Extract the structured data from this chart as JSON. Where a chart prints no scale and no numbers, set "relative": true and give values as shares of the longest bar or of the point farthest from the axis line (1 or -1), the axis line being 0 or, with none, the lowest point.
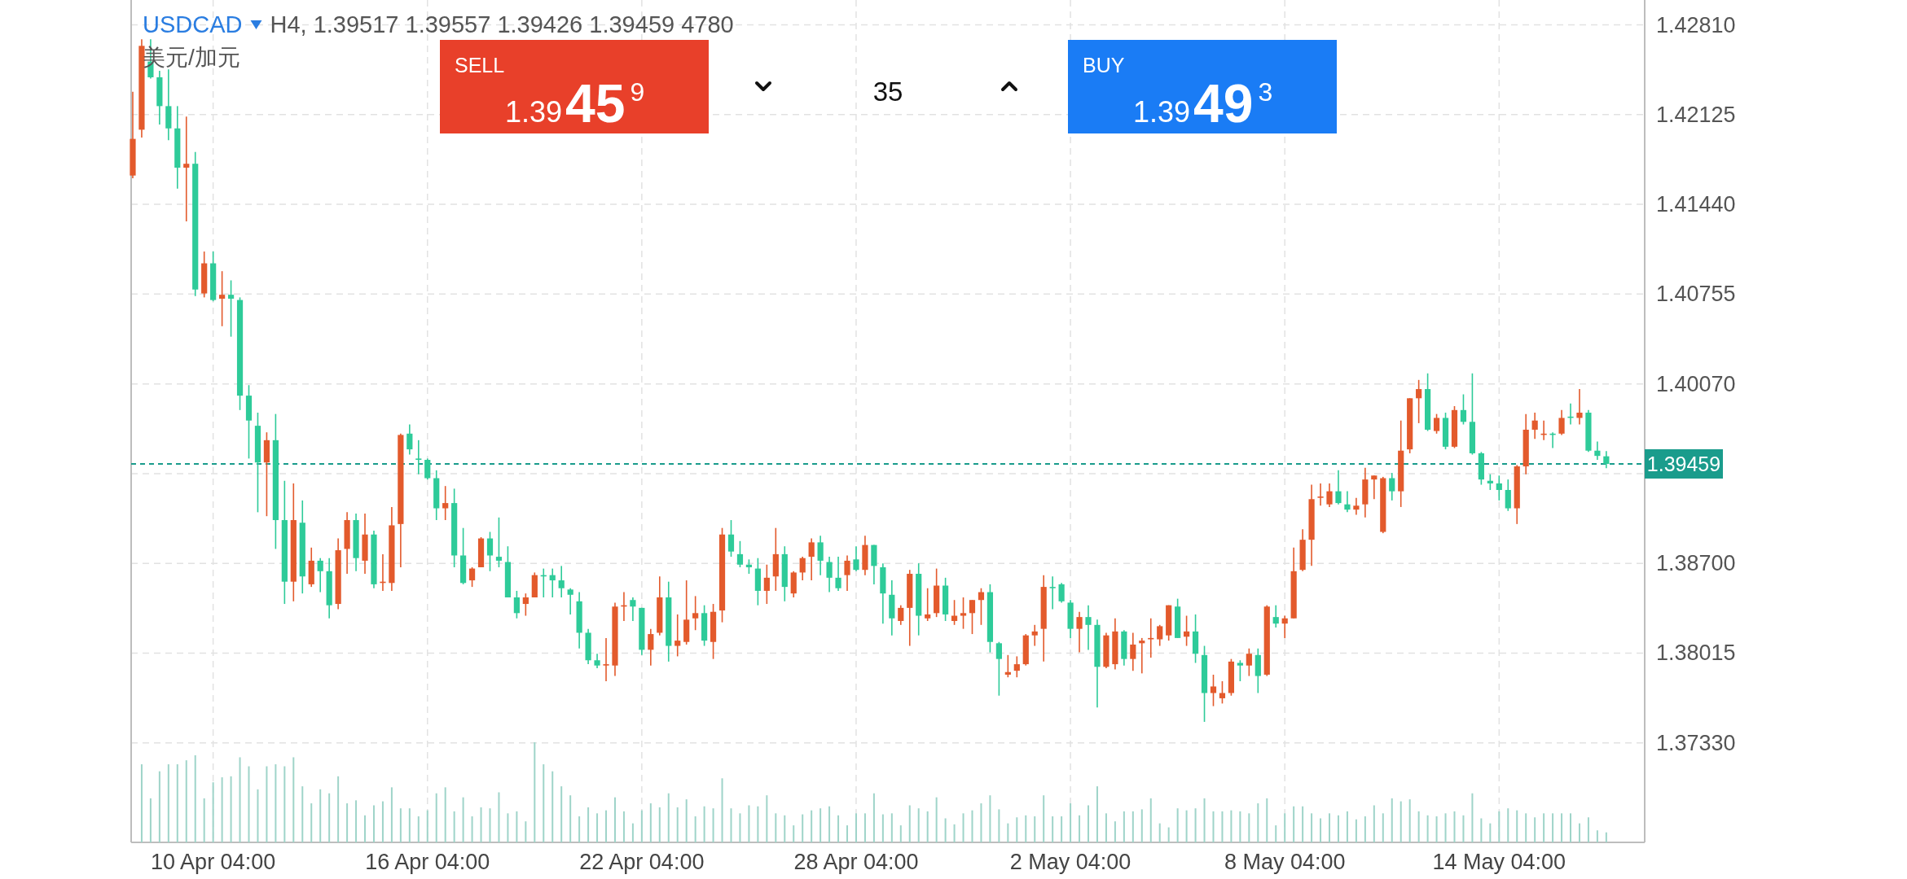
{
  "chart_data": [
    {
      "type": "candlestick",
      "title": "USDCAD",
      "subtitle": "H4, 1.39517 1.39557 1.39426 1.39459 4780",
      "annotations": [
        "美元/加元",
        "SELL",
        "1.39459",
        "35",
        "BUY",
        "1.39493"
      ],
      "categories": [
        null,
        null,
        null,
        null,
        null,
        null,
        null,
        null,
        null,
        "10 Apr 04:00",
        null,
        null,
        null,
        null,
        null,
        null,
        null,
        null,
        null,
        null,
        null,
        null,
        null,
        null,
        null,
        null,
        null,
        null,
        null,
        null,
        null,
        null,
        null,
        "16 Apr 04:00",
        null,
        null,
        null,
        null,
        null,
        null,
        null,
        null,
        null,
        null,
        null,
        null,
        null,
        null,
        null,
        null,
        null,
        null,
        null,
        null,
        null,
        null,
        null,
        "22 Apr 04:00",
        null,
        null,
        null,
        null,
        null,
        null,
        null,
        null,
        null,
        null,
        null,
        null,
        null,
        null,
        null,
        null,
        null,
        null,
        null,
        null,
        null,
        null,
        null,
        "28 Apr 04:00",
        null,
        null,
        null,
        null,
        null,
        null,
        null,
        null,
        null,
        null,
        null,
        null,
        null,
        null,
        null,
        null,
        null,
        null,
        null,
        null,
        null,
        null,
        null,
        "2 May 04:00",
        null,
        null,
        null,
        null,
        null,
        null,
        null,
        null,
        null,
        null,
        null,
        null,
        null,
        null,
        null,
        null,
        null,
        null,
        null,
        null,
        null,
        null,
        null,
        "8 May 04:00",
        null,
        null,
        null,
        null,
        null,
        null,
        null,
        null,
        null,
        null,
        null,
        null,
        null,
        null,
        null,
        null,
        null,
        null,
        null,
        null,
        null,
        null,
        null,
        "14 May 04:00",
        null,
        null,
        null,
        null,
        null,
        null,
        null,
        null,
        null,
        null,
        null,
        null
      ],
      "ohlc": [
        [
          1.4166,
          1.423,
          1.4164,
          1.4194
        ],
        [
          1.4201,
          1.427,
          1.4195,
          1.4265
        ],
        [
          1.4253,
          1.427,
          1.424,
          1.4241
        ],
        [
          1.4241,
          1.4246,
          1.4205,
          1.4219
        ],
        [
          1.4219,
          1.4247,
          1.4193,
          1.4202
        ],
        [
          1.4202,
          1.4219,
          1.4156,
          1.4172
        ],
        [
          1.4172,
          1.4211,
          1.4131,
          1.4175
        ],
        [
          1.4175,
          1.4184,
          1.4074,
          1.4079
        ],
        [
          1.4076,
          1.4108,
          1.4073,
          1.4099
        ],
        [
          1.4099,
          1.4108,
          1.407,
          1.4071
        ],
        [
          1.4072,
          1.4093,
          1.4051,
          1.4075
        ],
        [
          1.4075,
          1.4086,
          1.4043,
          1.4072
        ],
        [
          1.4071,
          1.4073,
          1.3987,
          1.3998
        ],
        [
          1.3998,
          1.4006,
          1.395,
          1.3979
        ],
        [
          1.3975,
          1.3985,
          1.3909,
          1.3947
        ],
        [
          1.3947,
          1.397,
          1.3906,
          1.3964
        ],
        [
          1.3964,
          1.3984,
          1.3881,
          1.3903
        ],
        [
          1.3903,
          1.3933,
          1.3839,
          1.3856
        ],
        [
          1.3856,
          1.3931,
          1.3841,
          1.3903
        ],
        [
          1.3901,
          1.3918,
          1.3847,
          1.386
        ],
        [
          1.3854,
          1.3882,
          1.3852,
          1.3872
        ],
        [
          1.3872,
          1.3874,
          1.3848,
          1.3864
        ],
        [
          1.3864,
          1.3874,
          1.3828,
          1.3838
        ],
        [
          1.3839,
          1.3889,
          1.3835,
          1.388
        ],
        [
          1.3881,
          1.3909,
          1.3862,
          1.3903
        ],
        [
          1.3903,
          1.3908,
          1.3864,
          1.3874
        ],
        [
          1.3872,
          1.3908,
          1.3862,
          1.3892
        ],
        [
          1.3892,
          1.3895,
          1.3851,
          1.3854
        ],
        [
          1.3855,
          1.3877,
          1.3849,
          1.3856
        ],
        [
          1.3855,
          1.3913,
          1.3849,
          1.3899
        ],
        [
          1.39,
          1.3969,
          1.3867,
          1.3968
        ],
        [
          1.3969,
          1.3976,
          1.3953,
          1.3957
        ],
        [
          1.395,
          1.3964,
          1.3938,
          1.3949
        ],
        [
          1.3949,
          1.395,
          1.3934,
          1.3935
        ],
        [
          1.3935,
          1.3941,
          1.3903,
          1.3912
        ],
        [
          1.3912,
          1.3929,
          1.3903,
          1.3916
        ],
        [
          1.3916,
          1.3927,
          1.3867,
          1.3876
        ],
        [
          1.3876,
          1.3897,
          1.3854,
          1.3855
        ],
        [
          1.3857,
          1.3867,
          1.3852,
          1.3866
        ],
        [
          1.3867,
          1.389,
          1.3867,
          1.3889
        ],
        [
          1.3889,
          1.3894,
          1.3864,
          1.3876
        ],
        [
          1.3875,
          1.3905,
          1.3867,
          1.3872
        ],
        [
          1.3871,
          1.3883,
          1.3844,
          1.3844
        ],
        [
          1.3844,
          1.3849,
          1.3828,
          1.3832
        ],
        [
          1.3839,
          1.3847,
          1.383,
          1.3844
        ],
        [
          1.3844,
          1.3863,
          1.3844,
          1.3861
        ],
        [
          1.3861,
          1.3866,
          1.3844,
          1.386
        ],
        [
          1.3861,
          1.3866,
          1.3844,
          1.3857
        ],
        [
          1.3857,
          1.3868,
          1.3844,
          1.3851
        ],
        [
          1.385,
          1.3851,
          1.3831,
          1.3846
        ],
        [
          1.3841,
          1.3848,
          1.3805,
          1.3817
        ],
        [
          1.3817,
          1.382,
          1.3793,
          1.3796
        ],
        [
          1.3796,
          1.3801,
          1.379,
          1.3792
        ],
        [
          1.3792,
          1.3813,
          1.378,
          1.3793
        ],
        [
          1.3792,
          1.384,
          1.3784,
          1.3837
        ],
        [
          1.3837,
          1.3848,
          1.3826,
          1.3838
        ],
        [
          1.3842,
          1.3844,
          1.3826,
          1.3837
        ],
        [
          1.3836,
          1.3836,
          1.38,
          1.3804
        ],
        [
          1.3804,
          1.382,
          1.3792,
          1.3816
        ],
        [
          1.3817,
          1.386,
          1.3815,
          1.3844
        ],
        [
          1.3844,
          1.3856,
          1.3795,
          1.3807
        ],
        [
          1.3807,
          1.3831,
          1.3799,
          1.3811
        ],
        [
          1.381,
          1.3857,
          1.3808,
          1.3827
        ],
        [
          1.3828,
          1.3845,
          1.3819,
          1.3832
        ],
        [
          1.3832,
          1.3838,
          1.3807,
          1.3811
        ],
        [
          1.381,
          1.3839,
          1.3797,
          1.3833
        ],
        [
          1.3834,
          1.3897,
          1.3825,
          1.3892
        ],
        [
          1.3892,
          1.3903,
          1.3875,
          1.3879
        ],
        [
          1.3877,
          1.3887,
          1.3867,
          1.3869
        ],
        [
          1.3869,
          1.3873,
          1.3862,
          1.3867
        ],
        [
          1.3866,
          1.3874,
          1.3838,
          1.3849
        ],
        [
          1.3849,
          1.3869,
          1.3839,
          1.3859
        ],
        [
          1.386,
          1.3897,
          1.3849,
          1.3877
        ],
        [
          1.3877,
          1.3883,
          1.3841,
          1.3852
        ],
        [
          1.3847,
          1.3864,
          1.3844,
          1.3863
        ],
        [
          1.3863,
          1.3875,
          1.3857,
          1.3874
        ],
        [
          1.3875,
          1.3889,
          1.3857,
          1.3886
        ],
        [
          1.3886,
          1.3891,
          1.3861,
          1.3872
        ],
        [
          1.3871,
          1.3875,
          1.3848,
          1.3859
        ],
        [
          1.3859,
          1.3875,
          1.3849,
          1.3851
        ],
        [
          1.3861,
          1.3876,
          1.3849,
          1.3872
        ],
        [
          1.3873,
          1.3883,
          1.3864,
          1.3865
        ],
        [
          1.3865,
          1.3891,
          1.3861,
          1.3884
        ],
        [
          1.3884,
          1.3884,
          1.3854,
          1.3868
        ],
        [
          1.3867,
          1.387,
          1.3824,
          1.3847
        ],
        [
          1.3846,
          1.3857,
          1.3815,
          1.3828
        ],
        [
          1.3826,
          1.3838,
          1.3823,
          1.3836
        ],
        [
          1.3836,
          1.3865,
          1.3807,
          1.3862
        ],
        [
          1.3862,
          1.387,
          1.3815,
          1.383
        ],
        [
          1.3828,
          1.3851,
          1.3826,
          1.3831
        ],
        [
          1.3832,
          1.3866,
          1.3829,
          1.3853
        ],
        [
          1.3853,
          1.3859,
          1.3826,
          1.3831
        ],
        [
          1.3826,
          1.3842,
          1.3823,
          1.383
        ],
        [
          1.383,
          1.3844,
          1.382,
          1.3832
        ],
        [
          1.3832,
          1.3842,
          1.3816,
          1.3842
        ],
        [
          1.3842,
          1.3851,
          1.3823,
          1.3848
        ],
        [
          1.3848,
          1.3854,
          1.3802,
          1.381
        ],
        [
          1.3809,
          1.381,
          1.3769,
          1.3797
        ],
        [
          1.3785,
          1.38,
          1.3783,
          1.3787
        ],
        [
          1.3788,
          1.3799,
          1.3783,
          1.3793
        ],
        [
          1.3793,
          1.3816,
          1.3792,
          1.3815
        ],
        [
          1.3815,
          1.3823,
          1.3807,
          1.3818
        ],
        [
          1.382,
          1.3861,
          1.3795,
          1.3852
        ],
        [
          1.3852,
          1.386,
          1.3835,
          1.3852
        ],
        [
          1.3854,
          1.3855,
          1.384,
          1.3841
        ],
        [
          1.384,
          1.3842,
          1.3813,
          1.382
        ],
        [
          1.382,
          1.3833,
          1.3802,
          1.3829
        ],
        [
          1.3829,
          1.3838,
          1.3804,
          1.3823
        ],
        [
          1.3823,
          1.3827,
          1.376,
          1.3791
        ],
        [
          1.3791,
          1.3817,
          1.379,
          1.3815
        ],
        [
          1.3793,
          1.3828,
          1.3789,
          1.3818
        ],
        [
          1.3818,
          1.3819,
          1.3792,
          1.3797
        ],
        [
          1.3797,
          1.3817,
          1.3788,
          1.3808
        ],
        [
          1.3809,
          1.3813,
          1.3786,
          1.3811
        ],
        [
          1.3812,
          1.3828,
          1.3798,
          1.3813
        ],
        [
          1.3812,
          1.3823,
          1.3807,
          1.3822
        ],
        [
          1.3815,
          1.3838,
          1.3811,
          1.3838
        ],
        [
          1.3837,
          1.3843,
          1.3813,
          1.3813
        ],
        [
          1.3814,
          1.383,
          1.3807,
          1.3818
        ],
        [
          1.3818,
          1.3831,
          1.3794,
          1.3801
        ],
        [
          1.38,
          1.3807,
          1.3749,
          1.3771
        ],
        [
          1.3771,
          1.3785,
          1.3761,
          1.3776
        ],
        [
          1.3767,
          1.378,
          1.3763,
          1.3771
        ],
        [
          1.3771,
          1.3797,
          1.3769,
          1.3795
        ],
        [
          1.3794,
          1.3796,
          1.378,
          1.3792
        ],
        [
          1.3792,
          1.3805,
          1.3784,
          1.3801
        ],
        [
          1.38,
          1.3805,
          1.3771,
          1.3784
        ],
        [
          1.3785,
          1.3838,
          1.3784,
          1.3837
        ],
        [
          1.3829,
          1.3838,
          1.3821,
          1.3824
        ],
        [
          1.3824,
          1.383,
          1.3813,
          1.3828
        ],
        [
          1.3828,
          1.3882,
          1.3828,
          1.3864
        ],
        [
          1.3865,
          1.3896,
          1.3864,
          1.3888
        ],
        [
          1.3888,
          1.393,
          1.3868,
          1.3919
        ],
        [
          1.392,
          1.3931,
          1.3914,
          1.3921
        ],
        [
          1.3915,
          1.3931,
          1.3913,
          1.3925
        ],
        [
          1.3925,
          1.3941,
          1.3915,
          1.3916
        ],
        [
          1.3915,
          1.3925,
          1.3909,
          1.3911
        ],
        [
          1.3911,
          1.392,
          1.3907,
          1.3914
        ],
        [
          1.3915,
          1.3943,
          1.3905,
          1.3934
        ],
        [
          1.3934,
          1.3937,
          1.3919,
          1.3937
        ],
        [
          1.3894,
          1.3936,
          1.3893,
          1.3935
        ],
        [
          1.3935,
          1.3939,
          1.3918,
          1.3925
        ],
        [
          1.3925,
          1.3979,
          1.3913,
          1.3956
        ],
        [
          1.3957,
          1.3996,
          1.3954,
          1.3996
        ],
        [
          1.3996,
          1.401,
          1.3977,
          1.4003
        ],
        [
          1.4003,
          1.4015,
          1.3971,
          1.3972
        ],
        [
          1.3971,
          1.3984,
          1.3969,
          1.3981
        ],
        [
          1.3981,
          1.3985,
          1.3957,
          1.3959
        ],
        [
          1.3959,
          1.399,
          1.3958,
          1.3987
        ],
        [
          1.3987,
          1.3999,
          1.3976,
          1.3978
        ],
        [
          1.3978,
          1.4015,
          1.3953,
          1.3954
        ],
        [
          1.3954,
          1.3955,
          1.393,
          1.3934
        ],
        [
          1.3933,
          1.3938,
          1.3926,
          1.3931
        ],
        [
          1.3931,
          1.3937,
          1.3918,
          1.3926
        ],
        [
          1.3926,
          1.3934,
          1.391,
          1.3912
        ],
        [
          1.3912,
          1.3945,
          1.39,
          1.3944
        ],
        [
          1.3944,
          1.3984,
          1.3938,
          1.3972
        ],
        [
          1.3972,
          1.3985,
          1.3965,
          1.3979
        ],
        [
          1.3968,
          1.3979,
          1.3964,
          1.3969
        ],
        [
          1.3969,
          1.397,
          1.3958,
          1.3968
        ],
        [
          1.3969,
          1.3987,
          1.3968,
          1.3981
        ],
        [
          1.3982,
          1.3992,
          1.3976,
          1.3982
        ],
        [
          1.3981,
          1.4003,
          1.3976,
          1.3985
        ],
        [
          1.3985,
          1.3987,
          1.3955,
          1.3956
        ],
        [
          1.3956,
          1.3963,
          1.3949,
          1.3952
        ],
        [
          1.39517,
          1.39557,
          1.39426,
          1.39459
        ]
      ],
      "colors": [
        "#e35a2c",
        "#e35a2c",
        "#2ecb99",
        "#2ecb99",
        "#2ecb99",
        "#2ecb99",
        "#e35a2c",
        "#2ecb99",
        "#e35a2c",
        "#2ecb99",
        "#e35a2c",
        "#2ecb99",
        "#2ecb99",
        "#2ecb99",
        "#2ecb99",
        "#e35a2c",
        "#2ecb99",
        "#2ecb99",
        "#e35a2c",
        "#2ecb99",
        "#e35a2c",
        "#2ecb99",
        "#2ecb99",
        "#e35a2c",
        "#e35a2c",
        "#2ecb99",
        "#e35a2c",
        "#2ecb99",
        "#e35a2c",
        "#e35a2c",
        "#e35a2c",
        "#2ecb99",
        "#2ecb99",
        "#2ecb99",
        "#2ecb99",
        "#e35a2c",
        "#2ecb99",
        "#2ecb99",
        "#e35a2c",
        "#e35a2c",
        "#2ecb99",
        "#2ecb99",
        "#2ecb99",
        "#2ecb99",
        "#e35a2c",
        "#e35a2c",
        "#2ecb99",
        "#2ecb99",
        "#2ecb99",
        "#2ecb99",
        "#2ecb99",
        "#2ecb99",
        "#2ecb99",
        "#e35a2c",
        "#e35a2c",
        "#e35a2c",
        "#2ecb99",
        "#2ecb99",
        "#e35a2c",
        "#e35a2c",
        "#2ecb99",
        "#e35a2c",
        "#e35a2c",
        "#e35a2c",
        "#2ecb99",
        "#e35a2c",
        "#e35a2c",
        "#2ecb99",
        "#2ecb99",
        "#2ecb99",
        "#2ecb99",
        "#e35a2c",
        "#e35a2c",
        "#2ecb99",
        "#e35a2c",
        "#e35a2c",
        "#e35a2c",
        "#2ecb99",
        "#2ecb99",
        "#2ecb99",
        "#e35a2c",
        "#2ecb99",
        "#e35a2c",
        "#2ecb99",
        "#2ecb99",
        "#2ecb99",
        "#e35a2c",
        "#e35a2c",
        "#2ecb99",
        "#e35a2c",
        "#e35a2c",
        "#2ecb99",
        "#e35a2c",
        "#e35a2c",
        "#e35a2c",
        "#e35a2c",
        "#2ecb99",
        "#2ecb99",
        "#e35a2c",
        "#e35a2c",
        "#e35a2c",
        "#e35a2c",
        "#e35a2c",
        "#2ecb99",
        "#2ecb99",
        "#2ecb99",
        "#e35a2c",
        "#2ecb99",
        "#2ecb99",
        "#e35a2c",
        "#e35a2c",
        "#2ecb99",
        "#e35a2c",
        "#e35a2c",
        "#e35a2c",
        "#e35a2c",
        "#e35a2c",
        "#2ecb99",
        "#e35a2c",
        "#2ecb99",
        "#2ecb99",
        "#e35a2c",
        "#e35a2c",
        "#e35a2c",
        "#2ecb99",
        "#e35a2c",
        "#2ecb99",
        "#e35a2c",
        "#2ecb99",
        "#e35a2c",
        "#e35a2c",
        "#e35a2c",
        "#e35a2c",
        "#e35a2c",
        "#e35a2c",
        "#2ecb99",
        "#2ecb99",
        "#e35a2c",
        "#e35a2c",
        "#e35a2c",
        "#e35a2c",
        "#2ecb99",
        "#e35a2c",
        "#e35a2c",
        "#e35a2c",
        "#2ecb99",
        "#e35a2c",
        "#2ecb99",
        "#e35a2c",
        "#2ecb99",
        "#2ecb99",
        "#2ecb99",
        "#2ecb99",
        "#2ecb99",
        "#2ecb99",
        "#e35a2c",
        "#e35a2c",
        "#e35a2c",
        "#e35a2c",
        "#2ecb99",
        "#e35a2c",
        "#2ecb99",
        "#e35a2c",
        "#2ecb99",
        "#2ecb99",
        "#2ecb99"
      ],
      "ylim": [
        1.3657,
        1.43
      ],
      "yticks": [
        {
          "value": 1.4281,
          "label": "1.42810"
        },
        {
          "value": 1.42125,
          "label": "1.42125"
        },
        {
          "value": 1.4144,
          "label": "1.41440"
        },
        {
          "value": 1.40755,
          "label": "1.40755"
        },
        {
          "value": 1.4007,
          "label": "1.40070"
        },
        {
          "value": 1.39385,
          "label": null
        },
        {
          "value": 1.387,
          "label": "1.38700"
        },
        {
          "value": 1.38015,
          "label": "1.38015"
        },
        {
          "value": 1.3733,
          "label": "1.37330"
        }
      ],
      "grid": true,
      "ref_lines": [
        {
          "axis": "y",
          "value": 1.39459,
          "label": "1.39459",
          "color": "#1a9c8c",
          "line_style": "dashed"
        }
      ]
    },
    {
      "type": "bar",
      "relative": true,
      "color": "#9fd4c9",
      "categories": [
        null,
        null,
        null,
        null,
        null,
        null,
        null,
        null,
        null,
        null,
        null,
        null,
        null,
        null,
        null,
        null,
        null,
        null,
        null,
        null,
        null,
        null,
        null,
        null,
        null,
        null,
        null,
        null,
        null,
        null,
        null,
        null,
        null,
        null,
        null,
        null,
        null,
        null,
        null,
        null,
        null,
        null,
        null,
        null,
        null,
        null,
        null,
        null,
        null,
        null,
        null,
        null,
        null,
        null,
        null,
        null,
        null,
        null,
        null,
        null,
        null,
        null,
        null,
        null,
        null,
        null,
        null,
        null,
        null,
        null,
        null,
        null,
        null,
        null,
        null,
        null,
        null,
        null,
        null,
        null,
        null,
        null,
        null,
        null,
        null,
        null,
        null,
        null,
        null,
        null,
        null,
        null,
        null,
        null,
        null,
        null,
        null,
        null,
        null,
        null,
        null,
        null,
        null,
        null,
        null,
        null,
        null,
        null,
        null,
        null,
        null,
        null,
        null,
        null,
        null,
        null,
        null,
        null,
        null,
        null,
        null,
        null,
        null,
        null,
        null,
        null,
        null,
        null,
        null,
        null,
        null,
        null,
        null,
        null,
        null,
        null,
        null,
        null,
        null,
        null,
        null,
        null,
        null,
        null,
        null,
        null,
        null,
        null,
        null,
        null,
        null,
        null,
        null,
        null,
        null,
        null,
        null,
        null,
        null,
        null,
        null,
        null,
        null,
        null,
        null,
        null
      ],
      "values": [
        null,
        0.78,
        0.44,
        0.71,
        0.78,
        0.78,
        0.82,
        0.87,
        0.44,
        0.6,
        0.65,
        0.66,
        0.85,
        0.76,
        0.53,
        0.76,
        0.78,
        0.76,
        0.85,
        0.56,
        0.39,
        0.53,
        0.49,
        0.66,
        0.39,
        0.42,
        0.27,
        0.37,
        0.41,
        0.55,
        0.34,
        0.34,
        0.26,
        0.32,
        0.49,
        0.55,
        0.31,
        0.45,
        0.26,
        0.35,
        0.34,
        0.5,
        0.29,
        0.31,
        0.21,
        1,
        0.78,
        0.71,
        0.56,
        0.47,
        0.26,
        0.35,
        0.29,
        0.32,
        0.45,
        0.31,
        0.19,
        0.32,
        0.39,
        0.35,
        0.49,
        0.35,
        0.43,
        0.26,
        0.36,
        0.34,
        0.64,
        0.34,
        0.29,
        0.37,
        0.36,
        0.47,
        0.29,
        0.27,
        0.17,
        0.28,
        0.32,
        0.34,
        0.36,
        0.27,
        0.17,
        0.29,
        0.29,
        0.49,
        0.28,
        0.29,
        0.17,
        0.37,
        0.34,
        0.31,
        0.45,
        0.24,
        0.18,
        0.29,
        0.32,
        0.39,
        0.47,
        0.33,
        0.19,
        0.25,
        0.27,
        0.26,
        0.47,
        0.26,
        0.26,
        0.39,
        0.27,
        0.37,
        0.56,
        0.29,
        0.21,
        0.31,
        0.31,
        0.33,
        0.44,
        0.19,
        0.15,
        0.34,
        0.32,
        0.34,
        0.44,
        0.31,
        0.31,
        0.32,
        0.31,
        0.29,
        0.39,
        0.44,
        0.17,
        0.29,
        0.36,
        0.36,
        0.29,
        0.24,
        0.29,
        0.27,
        0.31,
        0.23,
        0.26,
        0.37,
        0.29,
        0.44,
        0.41,
        0.43,
        0.31,
        0.27,
        0.26,
        0.29,
        0.31,
        0.27,
        0.49,
        0.24,
        0.19,
        0.31,
        0.34,
        0.32,
        0.29,
        0.25,
        0.29,
        0.29,
        0.29,
        0.29,
        0.19,
        0.25,
        0.12,
        0.1
      ]
    }
  ]
}
